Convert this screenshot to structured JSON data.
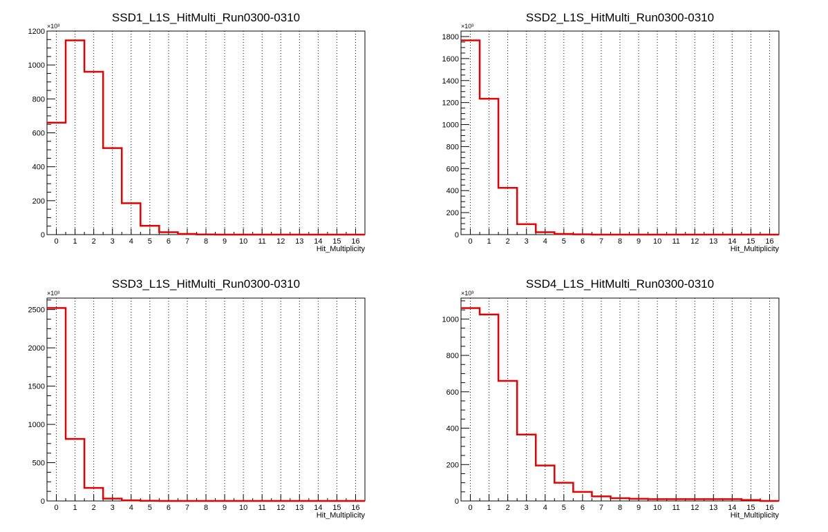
{
  "chart_data": [
    {
      "type": "histogram",
      "title": "SSD1_L1S_HitMulti_Run0300-0310",
      "xlabel": "Hit_Multiplicity",
      "ylabel": "",
      "y_multiplier_label": "×10³",
      "x_range": [
        -0.5,
        16.5
      ],
      "xticks": [
        0,
        1,
        2,
        3,
        4,
        5,
        6,
        7,
        8,
        9,
        10,
        11,
        12,
        13,
        14,
        15,
        16
      ],
      "ylim": [
        0,
        1200
      ],
      "yticks": [
        0,
        200,
        400,
        600,
        800,
        1000,
        1200
      ],
      "bin_centers": [
        0,
        1,
        2,
        3,
        4,
        5,
        6,
        7,
        8,
        9,
        10,
        11,
        12,
        13,
        14,
        15,
        16
      ],
      "values": [
        660,
        1145,
        960,
        510,
        185,
        52,
        14,
        4,
        1,
        0,
        0,
        0,
        0,
        0,
        0,
        0,
        0
      ],
      "grid": "vertical dotted",
      "line_color": "#e60000"
    },
    {
      "type": "histogram",
      "title": "SSD2_L1S_HitMulti_Run0300-0310",
      "xlabel": "Hit_Multiplicity",
      "ylabel": "",
      "y_multiplier_label": "×10³",
      "x_range": [
        -0.5,
        16.5
      ],
      "xticks": [
        0,
        1,
        2,
        3,
        4,
        5,
        6,
        7,
        8,
        9,
        10,
        11,
        12,
        13,
        14,
        15,
        16
      ],
      "ylim": [
        0,
        1850
      ],
      "yticks": [
        0,
        200,
        400,
        600,
        800,
        1000,
        1200,
        1400,
        1600,
        1800
      ],
      "bin_centers": [
        0,
        1,
        2,
        3,
        4,
        5,
        6,
        7,
        8,
        9,
        10,
        11,
        12,
        13,
        14,
        15,
        16
      ],
      "values": [
        1765,
        1235,
        425,
        95,
        22,
        6,
        2,
        0,
        0,
        0,
        0,
        0,
        0,
        0,
        0,
        0,
        0
      ],
      "grid": "vertical dotted",
      "line_color": "#e60000"
    },
    {
      "type": "histogram",
      "title": "SSD3_L1S_HitMulti_Run0300-0310",
      "xlabel": "Hit_Multiplicity",
      "ylabel": "",
      "y_multiplier_label": "×10³",
      "x_range": [
        -0.5,
        16.5
      ],
      "xticks": [
        0,
        1,
        2,
        3,
        4,
        5,
        6,
        7,
        8,
        9,
        10,
        11,
        12,
        13,
        14,
        15,
        16
      ],
      "ylim": [
        0,
        2650
      ],
      "yticks": [
        0,
        500,
        1000,
        1500,
        2000,
        2500
      ],
      "bin_centers": [
        0,
        1,
        2,
        3,
        4,
        5,
        6,
        7,
        8,
        9,
        10,
        11,
        12,
        13,
        14,
        15,
        16
      ],
      "values": [
        2520,
        810,
        170,
        30,
        8,
        2,
        0,
        0,
        0,
        0,
        0,
        0,
        0,
        0,
        0,
        0,
        0
      ],
      "grid": "vertical dotted",
      "line_color": "#e60000"
    },
    {
      "type": "histogram",
      "title": "SSD4_L1S_HitMulti_Run0300-0310",
      "xlabel": "Hit_Multiplicity",
      "ylabel": "",
      "y_multiplier_label": "×10³",
      "x_range": [
        -0.5,
        16.5
      ],
      "xticks": [
        0,
        1,
        2,
        3,
        4,
        5,
        6,
        7,
        8,
        9,
        10,
        11,
        12,
        13,
        14,
        15,
        16
      ],
      "ylim": [
        0,
        1115
      ],
      "yticks": [
        0,
        200,
        400,
        600,
        800,
        1000
      ],
      "bin_centers": [
        0,
        1,
        2,
        3,
        4,
        5,
        6,
        7,
        8,
        9,
        10,
        11,
        12,
        13,
        14,
        15,
        16
      ],
      "values": [
        1060,
        1025,
        660,
        365,
        195,
        100,
        50,
        25,
        15,
        12,
        10,
        10,
        10,
        10,
        10,
        5,
        0
      ],
      "grid": "vertical dotted",
      "line_color": "#e60000"
    }
  ]
}
